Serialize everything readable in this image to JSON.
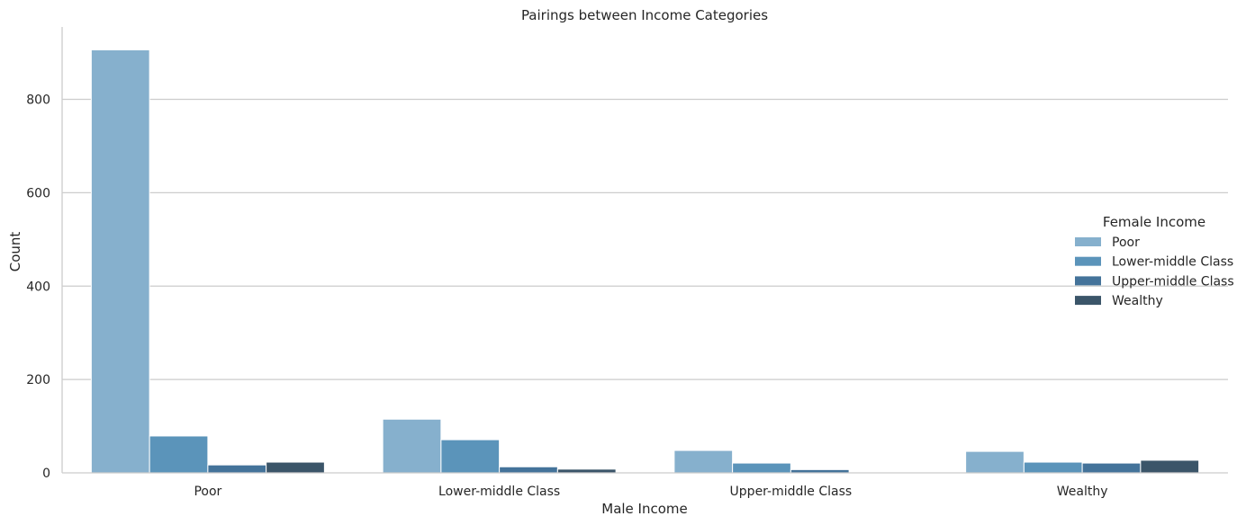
{
  "chart_data": {
    "type": "bar",
    "title": "Pairings between Income Categories",
    "xlabel": "Male Income",
    "ylabel": "Count",
    "categories": [
      "Poor",
      "Lower-middle Class",
      "Upper-middle Class",
      "Wealthy"
    ],
    "ylim": [
      0,
      955
    ],
    "yticks": [
      0,
      200,
      400,
      600,
      800
    ],
    "grid": "horizontal",
    "legend": {
      "title": "Female Income",
      "placement": "center-right"
    },
    "series": [
      {
        "name": "Poor",
        "color": "#86b0cd",
        "values": [
          906,
          115,
          48,
          46
        ]
      },
      {
        "name": "Lower-middle Class",
        "color": "#5b94ba",
        "values": [
          79,
          71,
          21,
          23
        ]
      },
      {
        "name": "Upper-middle Class",
        "color": "#44739a",
        "values": [
          17,
          13,
          7,
          21
        ]
      },
      {
        "name": "Wealthy",
        "color": "#3b5569",
        "values": [
          23,
          8,
          0,
          27
        ]
      }
    ]
  }
}
